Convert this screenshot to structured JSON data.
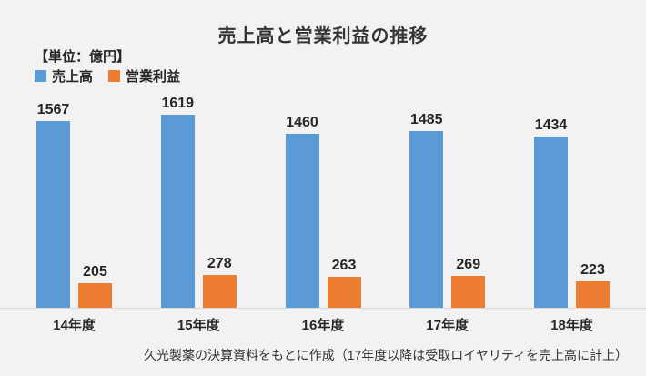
{
  "header": {
    "title": "売上高と営業利益の推移",
    "unit_label": "【単位：億円】"
  },
  "legend": {
    "items": [
      {
        "label": "売上高",
        "color": "#5B9BD5"
      },
      {
        "label": "営業利益",
        "color": "#ED7D31"
      }
    ]
  },
  "chart_data": {
    "type": "bar",
    "title": "売上高と営業利益の推移",
    "unit": "億円",
    "categories": [
      "14年度",
      "15年度",
      "16年度",
      "17年度",
      "18年度"
    ],
    "series": [
      {
        "name": "売上高",
        "color": "#5B9BD5",
        "values": [
          1567,
          1619,
          1460,
          1485,
          1434
        ]
      },
      {
        "name": "営業利益",
        "color": "#ED7D31",
        "values": [
          205,
          278,
          263,
          269,
          223
        ]
      }
    ],
    "ylim": [
      0,
      1619
    ],
    "grid": false,
    "data_labels": true,
    "legend_position": "top-left",
    "xlabel": "",
    "ylabel": ""
  },
  "footer": {
    "note": "久光製薬の決算資料をもとに作成（17年度以降は受取ロイヤリティを売上高に計上）"
  },
  "colors": {
    "background": "#F2F2F2",
    "axis_line": "#D9D9D9",
    "text": "#262626",
    "title_text": "#333333",
    "sales_bar": "#5B9BD5",
    "profit_bar": "#ED7D31"
  }
}
